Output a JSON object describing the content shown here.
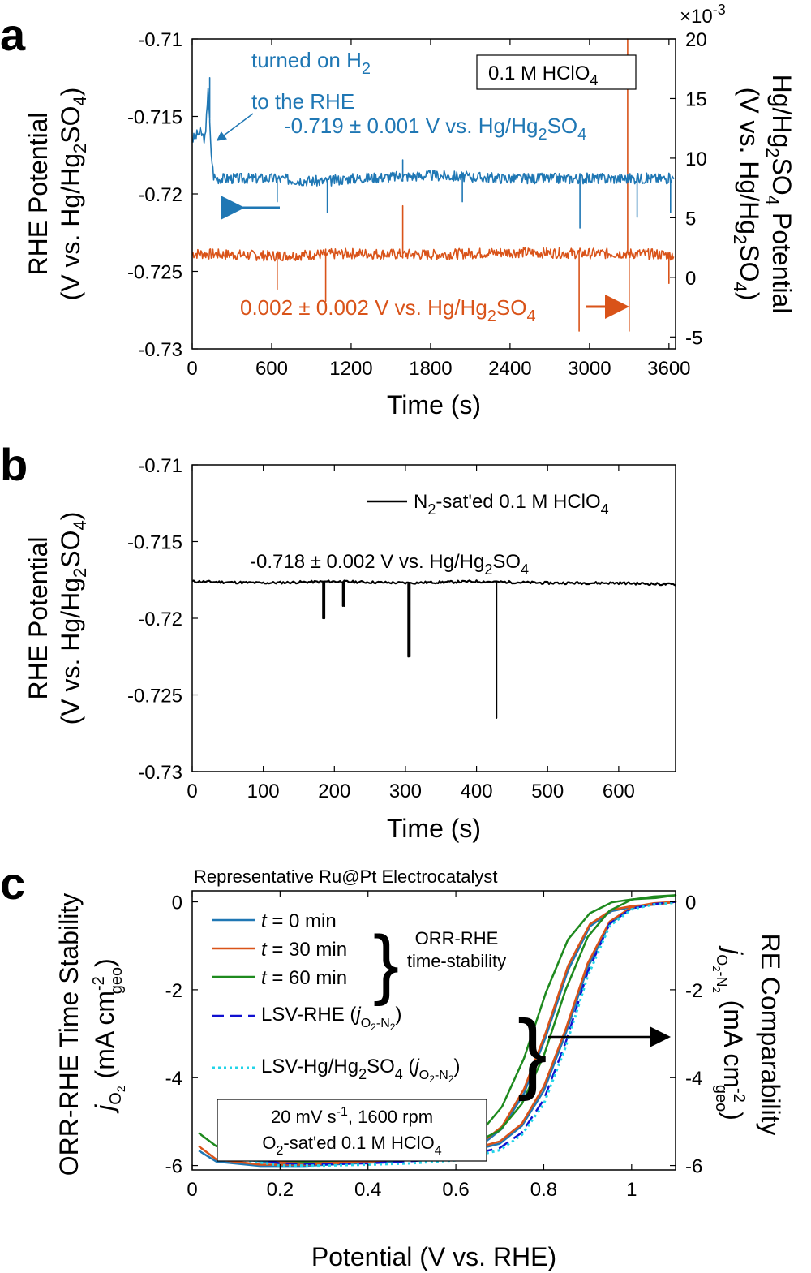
{
  "colors": {
    "blue": "#1f77b4",
    "orange": "#d95319",
    "green": "#1e8a1e",
    "darkblue": "#1010d0",
    "cyan": "#22d4e8",
    "black": "#000000"
  },
  "panels": {
    "a": {
      "letter": "a",
      "xlabel": "Time (s)",
      "ylabel_line1": "RHE Potential",
      "ylabel_line2": "(V vs. Hg/Hg",
      "ylabel_line2_sub": "2",
      "ylabel_line2_end": "SO",
      "ylabel_line2_sub2": "4",
      "ylabel_line2_close": ")",
      "ylabel_right_line1_a": "Hg/Hg",
      "ylabel_right_line1_s1": "2",
      "ylabel_right_line1_b": "SO",
      "ylabel_right_line1_s2": "4",
      "ylabel_right_line1_c": " Potential",
      "ylabel_right_line2_a": "(V vs. Hg/Hg",
      "ylabel_right_line2_s1": "2",
      "ylabel_right_line2_b": "SO",
      "ylabel_right_line2_s2": "4",
      "ylabel_right_line2_c": ")",
      "right_multiplier_base": "×10",
      "right_multiplier_exp": "-3",
      "box_label": "0.1 M HClO",
      "box_label_sub": "4",
      "annot_h2_a": "turned on H",
      "annot_h2_sub": "2",
      "annot_h2_line2": "to the RHE",
      "annot_blue_a": "-0.719 ± 0.001 V vs. Hg/Hg",
      "annot_blue_s1": "2",
      "annot_blue_b": "SO",
      "annot_blue_s2": "4",
      "annot_orange_a": "0.002 ± 0.002 V vs. Hg/Hg",
      "annot_orange_s1": "2",
      "annot_orange_b": "SO",
      "annot_orange_s2": "4",
      "x_ticks": [
        "0",
        "600",
        "1200",
        "1800",
        "2400",
        "3000",
        "3600"
      ],
      "y_ticks": [
        "-0.71",
        "-0.715",
        "-0.72",
        "-0.725",
        "-0.73"
      ],
      "y_right_ticks": [
        "20",
        "15",
        "10",
        "5",
        "0",
        "-5"
      ]
    },
    "b": {
      "letter": "b",
      "xlabel": "Time (s)",
      "ylabel_line1": "RHE Potential",
      "ylabel_line2": "(V vs. Hg/Hg",
      "ylabel_line2_sub": "2",
      "ylabel_line2_end": "SO",
      "ylabel_line2_sub2": "4",
      "ylabel_line2_close": ")",
      "legend_a": "N",
      "legend_sub": "2",
      "legend_b": "-sat'ed 0.1 M HClO",
      "legend_sub2": "4",
      "annot_a": "-0.718 ± 0.002 V vs. Hg/Hg",
      "annot_s1": "2",
      "annot_b": "SO",
      "annot_s2": "4",
      "x_ticks": [
        "0",
        "100",
        "200",
        "300",
        "400",
        "500",
        "600"
      ],
      "y_ticks": [
        "-0.71",
        "-0.715",
        "-0.72",
        "-0.725",
        "-0.73"
      ]
    },
    "c": {
      "letter": "c",
      "title": "Representative Ru@Pt Electrocatalyst",
      "xlabel": "Potential (V vs. RHE)",
      "ylabel_left_line1": "ORR-RHE Time Stability",
      "ylabel_left_j": "j",
      "ylabel_left_jsub": "O",
      "ylabel_left_jsub2": "2",
      "ylabel_left_units": " (mA cm",
      "ylabel_left_sup": "-2",
      "ylabel_left_geo": "geo",
      "ylabel_left_close": ")",
      "ylabel_right_line1": "RE Comparability",
      "ylabel_right_j": "j",
      "ylabel_right_sub_a": "O",
      "ylabel_right_sub_2a": "2",
      "ylabel_right_sub_dash": "-N",
      "ylabel_right_sub_2b": "2",
      "ylabel_right_units": " (mA cm",
      "ylabel_right_sup": "-2",
      "ylabel_right_geo": "geo",
      "ylabel_right_close": ")",
      "legend": [
        {
          "label_t": "t",
          "label_rest": " = 0 min",
          "style": "solid",
          "color": "blue"
        },
        {
          "label_t": "t",
          "label_rest": " = 30 min",
          "style": "solid",
          "color": "orange"
        },
        {
          "label_t": "t",
          "label_rest": " = 60 min",
          "style": "solid",
          "color": "green"
        },
        {
          "label_t": "LSV-RHE (",
          "label_rest": "",
          "style": "dashed",
          "color": "darkblue"
        },
        {
          "label_t": "LSV-Hg/Hg",
          "label_rest": "",
          "style": "dotted",
          "color": "cyan"
        }
      ],
      "brace_label_1": "ORR-RHE",
      "brace_label_2": "time-stability",
      "lsv_rhe_j": "j",
      "lsv_hg_a": "SO",
      "lsv_hg_s1": "2",
      "lsv_hg_s2": "4",
      "box_line1_a": "20 mV s",
      "box_line1_sup": "-1",
      "box_line1_b": ", 1600 rpm",
      "box_line2_a": "O",
      "box_line2_sub": "2",
      "box_line2_b": "-sat'ed 0.1 M HClO",
      "box_line2_sub2": "4",
      "x_ticks": [
        "0",
        "0.2",
        "0.4",
        "0.6",
        "0.8",
        "1"
      ],
      "y_ticks": [
        "0",
        "-2",
        "-4",
        "-6"
      ],
      "y_right_ticks": [
        "0",
        "-2",
        "-4",
        "-6"
      ]
    }
  },
  "chart_data": [
    {
      "type": "line",
      "panel": "a",
      "xlabel": "Time (s)",
      "ylabel": "RHE Potential (V vs. Hg/Hg2SO4)",
      "ylabel_right": "Hg/Hg2SO4 Potential (V vs. Hg/Hg2SO4)",
      "xlim": [
        0,
        3650
      ],
      "ylim": [
        -0.73,
        -0.71
      ],
      "ylim_right": [
        -0.006,
        0.02
      ],
      "series": [
        {
          "axis": "left",
          "color": "blue",
          "x": [
            0,
            60,
            100,
            120,
            140,
            160,
            180,
            300,
            600,
            1000,
            1200,
            1800,
            2400,
            3000,
            3300,
            3600
          ],
          "y": [
            -0.7165,
            -0.716,
            -0.7165,
            -0.713,
            -0.717,
            -0.7188,
            -0.719,
            -0.719,
            -0.719,
            -0.7192,
            -0.719,
            -0.7188,
            -0.719,
            -0.719,
            -0.719,
            -0.719
          ],
          "spikes": [
            [
              130,
              -0.7125
            ],
            [
              640,
              -0.7205
            ],
            [
              1020,
              -0.7212
            ],
            [
              1590,
              -0.7178
            ],
            [
              2040,
              -0.7205
            ],
            [
              2930,
              -0.7222
            ],
            [
              3360,
              -0.7215
            ],
            [
              3610,
              -0.7212
            ]
          ]
        },
        {
          "axis": "right",
          "color": "orange",
          "x": [
            0,
            600,
            1200,
            1800,
            2400,
            3000,
            3300,
            3600
          ],
          "y": [
            0.002,
            0.0018,
            0.002,
            0.0019,
            0.0021,
            0.002,
            0.002,
            0.0019
          ],
          "spikes": [
            [
              640,
              -0.001
            ],
            [
              1010,
              -0.002
            ],
            [
              1590,
              0.006
            ],
            [
              2920,
              -0.0045
            ],
            [
              3290,
              0.02
            ],
            [
              3300,
              -0.0045
            ],
            [
              3600,
              -0.0005
            ]
          ]
        }
      ]
    },
    {
      "type": "line",
      "panel": "b",
      "xlabel": "Time (s)",
      "ylabel": "RHE Potential (V vs. Hg/Hg2SO4)",
      "xlim": [
        0,
        680
      ],
      "ylim": [
        -0.73,
        -0.71
      ],
      "series": [
        {
          "name": "N2-sat'ed 0.1 M HClO4",
          "color": "black",
          "x": [
            0,
            100,
            200,
            300,
            400,
            500,
            600,
            680
          ],
          "y": [
            -0.7176,
            -0.7177,
            -0.7176,
            -0.7177,
            -0.7176,
            -0.7177,
            -0.7177,
            -0.7178
          ],
          "spikes": [
            [
              185,
              -0.72
            ],
            [
              213,
              -0.7192
            ],
            [
              305,
              -0.7225
            ],
            [
              428,
              -0.7265
            ]
          ]
        }
      ]
    },
    {
      "type": "line",
      "panel": "c",
      "title": "Representative Ru@Pt Electrocatalyst",
      "xlabel": "Potential (V vs. RHE)",
      "ylabel": "jO2 (mA cm-2 geo)",
      "ylabel_right": "jO2-N2 (mA cm-2 geo)",
      "xlim": [
        0,
        1.1
      ],
      "ylim": [
        -6.1,
        0.25
      ],
      "series": [
        {
          "name": "t = 0 min",
          "color": "blue",
          "style": "solid",
          "x": [
            0.06,
            0.1,
            0.2,
            0.3,
            0.4,
            0.5,
            0.6,
            0.7,
            0.75,
            0.8,
            0.85,
            0.9,
            0.95,
            1.0,
            1.05,
            1.1
          ],
          "y": [
            -5.6,
            -5.85,
            -5.95,
            -5.95,
            -5.9,
            -5.85,
            -5.75,
            -5.5,
            -5.1,
            -4.3,
            -3.0,
            -1.5,
            -0.5,
            -0.15,
            -0.05,
            0.0
          ]
        },
        {
          "name": "t = 30 min",
          "color": "orange",
          "style": "solid",
          "x": [
            0.06,
            0.1,
            0.2,
            0.3,
            0.4,
            0.5,
            0.6,
            0.7,
            0.75,
            0.8,
            0.85,
            0.9,
            0.95,
            1.0,
            1.05,
            1.1
          ],
          "y": [
            -5.5,
            -5.8,
            -5.92,
            -5.92,
            -5.88,
            -5.82,
            -5.72,
            -5.45,
            -5.05,
            -4.2,
            -2.9,
            -1.4,
            -0.45,
            -0.12,
            -0.03,
            0.0
          ]
        },
        {
          "name": "t = 60 min",
          "color": "green",
          "style": "solid",
          "x": [
            0.06,
            0.1,
            0.2,
            0.3,
            0.4,
            0.5,
            0.6,
            0.65,
            0.7,
            0.75,
            0.8,
            0.85,
            0.9,
            0.95,
            1.0,
            1.05,
            1.1
          ],
          "y": [
            -5.2,
            -5.5,
            -5.8,
            -5.85,
            -5.82,
            -5.75,
            -5.6,
            -5.45,
            -5.2,
            -4.6,
            -3.5,
            -2.0,
            -0.8,
            -0.2,
            0.05,
            0.12,
            0.15
          ]
        },
        {
          "name": "LSV-RHE (jO2-N2)",
          "color": "darkblue",
          "style": "dashed",
          "x": [
            0.06,
            0.1,
            0.2,
            0.3,
            0.4,
            0.5,
            0.6,
            0.7,
            0.75,
            0.8,
            0.85,
            0.9,
            0.95,
            1.0,
            1.05,
            1.1
          ],
          "y": [
            -5.5,
            -5.75,
            -5.95,
            -5.97,
            -5.95,
            -5.9,
            -5.82,
            -5.6,
            -5.25,
            -4.5,
            -3.2,
            -1.6,
            -0.5,
            -0.15,
            -0.05,
            0.0
          ]
        },
        {
          "name": "LSV-Hg/Hg2SO4 (jO2-N2)",
          "color": "cyan",
          "style": "dotted",
          "x": [
            0.06,
            0.1,
            0.2,
            0.3,
            0.4,
            0.5,
            0.6,
            0.7,
            0.75,
            0.8,
            0.85,
            0.9,
            0.95,
            1.0,
            1.05,
            1.1
          ],
          "y": [
            -5.6,
            -5.85,
            -6.0,
            -6.0,
            -5.98,
            -5.95,
            -5.88,
            -5.65,
            -5.3,
            -4.6,
            -3.3,
            -1.7,
            -0.55,
            -0.17,
            -0.06,
            -0.02
          ]
        }
      ]
    }
  ]
}
